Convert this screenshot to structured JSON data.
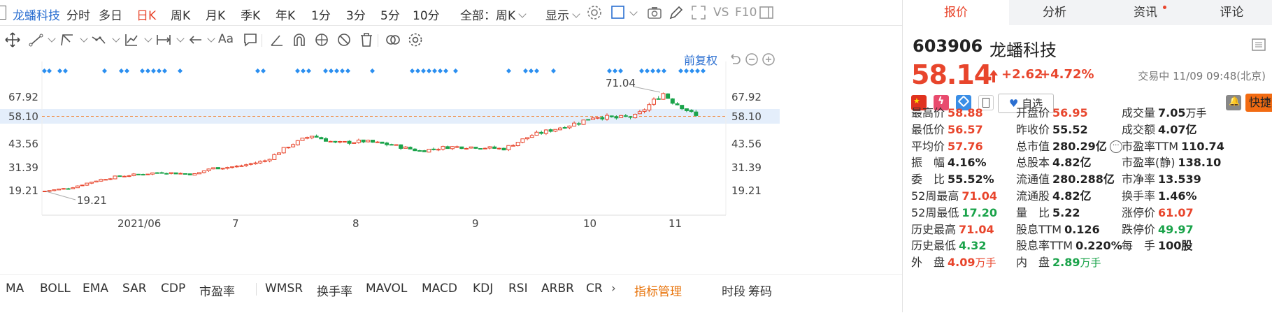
{
  "toolbar": {
    "stock_name": "龙蟠科技",
    "periods": [
      "分时",
      "多日",
      "日K",
      "周K",
      "月K",
      "季K",
      "年K",
      "1分",
      "3分",
      "5分",
      "10分"
    ],
    "active_period": "日K",
    "range_select": "全部：周K",
    "display_label": "显示",
    "vs_label": "VS",
    "f10_label": "F10"
  },
  "chart": {
    "adjust_label": "前复权",
    "y_ticks": [
      "67.92",
      "58.10",
      "43.56",
      "31.39",
      "19.21"
    ],
    "x_ticks": [
      "2021/06",
      "7",
      "8",
      "9",
      "10",
      "11"
    ],
    "current_price_label": "58.10",
    "high_annotation": "71.04",
    "low_annotation": "19.21",
    "colors": {
      "up": "#e8452c",
      "down": "#1aa34a",
      "marker": "#2b8ff0",
      "price_line": "#f0883c"
    }
  },
  "indicators": {
    "items": [
      "MA",
      "BOLL",
      "EMA",
      "SAR",
      "CDP",
      "市盈率",
      "WMSR",
      "换手率",
      "MAVOL",
      "MACD",
      "KDJ",
      "RSI",
      "ARBR",
      "CR"
    ],
    "manage_label": "指标管理",
    "right_items": [
      "时段",
      "筹码"
    ]
  },
  "panel": {
    "tabs": [
      "报价",
      "分析",
      "资讯",
      "评论"
    ],
    "active_tab": "报价",
    "code": "603906",
    "name": "龙蟠科技",
    "price": "58.14",
    "change": "+2.62",
    "change_pct": "+4.72%",
    "trade_status": "交易中 11/09 09:48(北京)",
    "watch_label": "自选",
    "quick_trade_label": "快捷交易",
    "stats": [
      [
        {
          "label": "最高价",
          "value": "58.88",
          "color": "up"
        },
        {
          "label": "开盘价",
          "value": "56.95",
          "color": "up"
        },
        {
          "label": "成交量",
          "value": "7.05",
          "unit": "万手",
          "color": "bk"
        }
      ],
      [
        {
          "label": "最低价",
          "value": "56.57",
          "color": "up"
        },
        {
          "label": "昨收价",
          "value": "55.52",
          "color": "bk"
        },
        {
          "label": "成交额",
          "value": "4.07亿",
          "color": "bk"
        }
      ],
      [
        {
          "label": "平均价",
          "value": "57.76",
          "color": "up"
        },
        {
          "label": "总市值",
          "value": "280.29亿",
          "color": "bk"
        },
        {
          "label": "市盈率TTM",
          "value": "110.74",
          "color": "bk"
        }
      ],
      [
        {
          "label": "振　幅",
          "value": "4.16%",
          "color": "bk"
        },
        {
          "label": "总股本",
          "value": "4.82亿",
          "color": "bk"
        },
        {
          "label": "市盈率(静)",
          "value": "138.10",
          "color": "bk"
        }
      ],
      [
        {
          "label": "委　比",
          "value": "55.52%",
          "color": "bk"
        },
        {
          "label": "流通值",
          "value": "280.288亿",
          "color": "bk"
        },
        {
          "label": "市净率",
          "value": "13.539",
          "color": "bk"
        }
      ],
      [
        {
          "label": "52周最高",
          "value": "71.04",
          "color": "up"
        },
        {
          "label": "流通股",
          "value": "4.82亿",
          "color": "bk"
        },
        {
          "label": "换手率",
          "value": "1.46%",
          "color": "bk"
        }
      ],
      [
        {
          "label": "52周最低",
          "value": "17.20",
          "color": "dn"
        },
        {
          "label": "量　比",
          "value": "5.22",
          "color": "bk"
        },
        {
          "label": "涨停价",
          "value": "61.07",
          "color": "up"
        }
      ],
      [
        {
          "label": "历史最高",
          "value": "71.04",
          "color": "up"
        },
        {
          "label": "股息TTM",
          "value": "0.126",
          "color": "bk"
        },
        {
          "label": "跌停价",
          "value": "49.97",
          "color": "dn"
        }
      ],
      [
        {
          "label": "历史最低",
          "value": "4.32",
          "color": "dn"
        },
        {
          "label": "股息率TTM",
          "value": "0.220%",
          "color": "bk"
        },
        {
          "label": "每　手",
          "value": "100股",
          "color": "bk"
        }
      ],
      [
        {
          "label": "外　盘",
          "value": "4.09",
          "unit": "万手",
          "color": "up"
        },
        {
          "label": "内　盘",
          "value": "2.89",
          "unit": "万手",
          "color": "dn"
        },
        {
          "label": "",
          "value": "",
          "color": "bk"
        }
      ]
    ]
  }
}
